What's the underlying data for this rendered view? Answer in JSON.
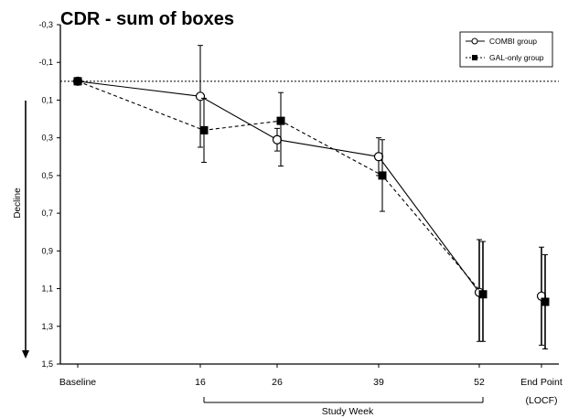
{
  "chart_data": {
    "type": "line",
    "title": "CDR - sum of boxes",
    "ylabel": "Decline",
    "xlabel": "Study Week",
    "ylim": [
      -0.3,
      1.5
    ],
    "y_inverted": true,
    "y_ticks": [
      "-0,3",
      "-0,1",
      "0,1",
      "0,3",
      "0,5",
      "0,7",
      "0,9",
      "1,1",
      "1,3",
      "1,5"
    ],
    "categories": [
      "Baseline",
      "16",
      "26",
      "39",
      "52",
      "End Point"
    ],
    "category_sublabels": [
      "",
      "",
      "",
      "",
      "",
      "(LOCF)"
    ],
    "reference_line": 0,
    "legend_position": "top-right",
    "series": [
      {
        "name": "COMBI group",
        "marker": "open-circle",
        "line": "solid",
        "values": [
          0,
          0.08,
          0.31,
          0.4,
          1.12,
          1.14
        ],
        "error_low": [
          0,
          -0.19,
          0.25,
          0.3,
          0.84,
          0.88
        ],
        "error_high": [
          0,
          0.35,
          0.37,
          0.5,
          1.38,
          1.4
        ],
        "connected": [
          true,
          true,
          true,
          true,
          true,
          false
        ]
      },
      {
        "name": "GAL-only group",
        "marker": "filled-square",
        "line": "dashed",
        "values": [
          0,
          0.26,
          0.21,
          0.5,
          1.13,
          1.17
        ],
        "error_low": [
          0,
          0.09,
          0.06,
          0.31,
          0.85,
          0.92
        ],
        "error_high": [
          0,
          0.43,
          0.45,
          0.69,
          1.38,
          1.42
        ],
        "connected": [
          true,
          true,
          true,
          true,
          true,
          false
        ]
      }
    ]
  }
}
